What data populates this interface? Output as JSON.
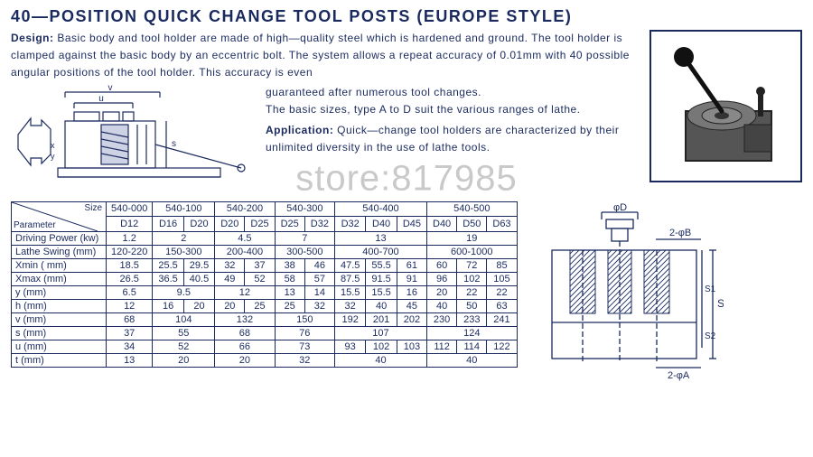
{
  "title": "40—POSITION QUICK CHANGE TOOL POSTS (EUROPE STYLE)",
  "design_label": "Design:",
  "design_text1": "Basic body and tool holder are made of high—quality steel which is hardened and ground. The tool holder is clamped against the basic body by an eccentric bolt. The system allows a repeat accuracy of 0.01mm with 40 possible angular positions of the tool holder. This accuracy is even",
  "design_text2": "guaranteed after numerous tool changes.",
  "design_text3": "The basic sizes, type A to D suit the various ranges of lathe.",
  "app_label": "Application:",
  "app_text": "Quick—change tool holders are characterized by their unlimited diversity in the use of lathe tools.",
  "watermark": "store:817985",
  "table": {
    "size_label": "Size",
    "param_label": "Parameter",
    "size_headers": [
      "540-000",
      "540-100",
      "540-200",
      "540-300",
      "540-400",
      "540-500"
    ],
    "size_subheaders": [
      [
        "D12"
      ],
      [
        "D16",
        "D20"
      ],
      [
        "D20",
        "D25"
      ],
      [
        "D25",
        "D32"
      ],
      [
        "D32",
        "D40",
        "D45"
      ],
      [
        "D40",
        "D50",
        "D63"
      ]
    ],
    "rows": [
      {
        "param": "Driving Power (kw)",
        "vals": [
          [
            "1.2"
          ],
          [
            "2"
          ],
          [
            "4.5"
          ],
          [
            "7"
          ],
          [
            "13"
          ],
          [
            "19"
          ]
        ]
      },
      {
        "param": "Lathe Swing (mm)",
        "vals": [
          [
            "120-220"
          ],
          [
            "150-300"
          ],
          [
            "200-400"
          ],
          [
            "300-500"
          ],
          [
            "400-700"
          ],
          [
            "600-1000"
          ]
        ]
      },
      {
        "param": "Xmin ( mm)",
        "vals": [
          [
            "18.5"
          ],
          [
            "25.5",
            "29.5"
          ],
          [
            "32",
            "37"
          ],
          [
            "38",
            "46"
          ],
          [
            "47.5",
            "55.5",
            "61"
          ],
          [
            "60",
            "72",
            "85"
          ]
        ]
      },
      {
        "param": "Xmax (mm)",
        "vals": [
          [
            "26.5"
          ],
          [
            "36.5",
            "40.5"
          ],
          [
            "49",
            "52"
          ],
          [
            "58",
            "57"
          ],
          [
            "87.5",
            "91.5",
            "91"
          ],
          [
            "96",
            "102",
            "105"
          ]
        ]
      },
      {
        "param": "y (mm)",
        "vals": [
          [
            "6.5"
          ],
          [
            "9.5"
          ],
          [
            "12"
          ],
          [
            "13",
            "14"
          ],
          [
            "15.5",
            "15.5",
            "16"
          ],
          [
            "20",
            "22",
            "22"
          ]
        ]
      },
      {
        "param": "h (mm)",
        "vals": [
          [
            "12"
          ],
          [
            "16",
            "20"
          ],
          [
            "20",
            "25"
          ],
          [
            "25",
            "32"
          ],
          [
            "32",
            "40",
            "45"
          ],
          [
            "40",
            "50",
            "63"
          ]
        ]
      },
      {
        "param": "v (mm)",
        "vals": [
          [
            "68"
          ],
          [
            "104"
          ],
          [
            "132"
          ],
          [
            "150"
          ],
          [
            "192",
            "201",
            "202"
          ],
          [
            "230",
            "233",
            "241"
          ]
        ]
      },
      {
        "param": "s (mm)",
        "vals": [
          [
            "37"
          ],
          [
            "55"
          ],
          [
            "68"
          ],
          [
            "76"
          ],
          [
            "107"
          ],
          [
            "124"
          ]
        ]
      },
      {
        "param": "u (mm)",
        "vals": [
          [
            "34"
          ],
          [
            "52"
          ],
          [
            "66"
          ],
          [
            "73"
          ],
          [
            "93",
            "102",
            "103"
          ],
          [
            "112",
            "114",
            "122"
          ]
        ]
      },
      {
        "param": "t (mm)",
        "vals": [
          [
            "13"
          ],
          [
            "20"
          ],
          [
            "20"
          ],
          [
            "32"
          ],
          [
            "40"
          ],
          [
            "40"
          ]
        ]
      }
    ],
    "colspans": [
      1,
      2,
      2,
      2,
      3,
      3
    ]
  },
  "colors": {
    "ink": "#1a2a5e",
    "bg": "#ffffff"
  },
  "diagram_labels": {
    "phiD": "φD",
    "twoPhiB": "2-φB",
    "S": "S",
    "S1": "S1",
    "S2": "S2",
    "twoPhiA": "2-φA",
    "v": "v",
    "u": "u"
  }
}
